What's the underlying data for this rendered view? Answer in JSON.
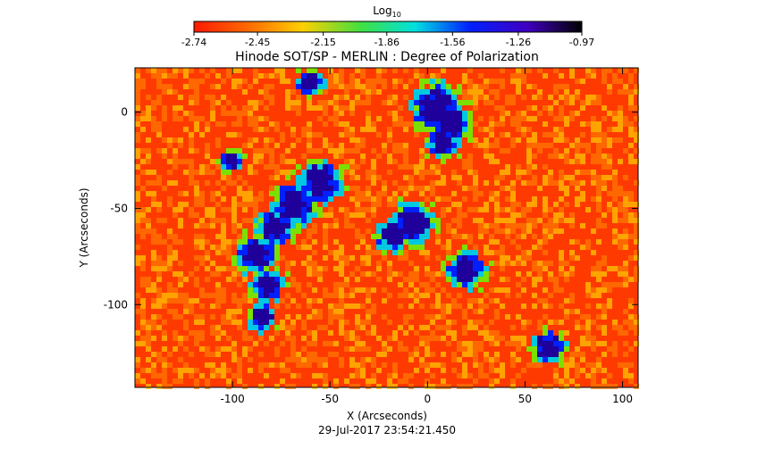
{
  "chart_data": {
    "type": "heatmap",
    "title": "Hinode SOT/SP - MERLIN : Degree of Polarization",
    "xlabel": "X (Arcseconds)",
    "ylabel": "Y (Arcseconds)",
    "timestamp": "29-Jul-2017 23:54:21.450",
    "xlim": [
      -150,
      108
    ],
    "ylim": [
      -143,
      23
    ],
    "xticks": [
      {
        "value": -100,
        "label": "-100"
      },
      {
        "value": -50,
        "label": "-50"
      },
      {
        "value": 0,
        "label": "0"
      },
      {
        "value": 50,
        "label": "50"
      },
      {
        "value": 100,
        "label": "100"
      }
    ],
    "yticks": [
      {
        "value": 0,
        "label": "0"
      },
      {
        "value": -50,
        "label": "-50"
      },
      {
        "value": -100,
        "label": "-100"
      }
    ],
    "colorbar": {
      "title_main": "Log",
      "title_sub": "10",
      "range": [
        -2.74,
        -0.97
      ],
      "colormap": "rainbow (red to black)",
      "ticks": [
        {
          "value": -2.74,
          "label": "-2.74"
        },
        {
          "value": -2.45,
          "label": "-2.45"
        },
        {
          "value": -2.15,
          "label": "-2.15"
        },
        {
          "value": -1.86,
          "label": "-1.86"
        },
        {
          "value": -1.56,
          "label": "-1.56"
        },
        {
          "value": -1.26,
          "label": "-1.26"
        },
        {
          "value": -0.97,
          "label": "-0.97"
        }
      ]
    },
    "high_polarization_regions": [
      {
        "x": 5,
        "y": 2,
        "spread": 9
      },
      {
        "x": 12,
        "y": -6,
        "spread": 7
      },
      {
        "x": 8,
        "y": -15,
        "spread": 6
      },
      {
        "x": -8,
        "y": -58,
        "spread": 8
      },
      {
        "x": -18,
        "y": -64,
        "spread": 6
      },
      {
        "x": -55,
        "y": -36,
        "spread": 8
      },
      {
        "x": -68,
        "y": -48,
        "spread": 8
      },
      {
        "x": -78,
        "y": -60,
        "spread": 7
      },
      {
        "x": -88,
        "y": -74,
        "spread": 7
      },
      {
        "x": -82,
        "y": -90,
        "spread": 6
      },
      {
        "x": -85,
        "y": -107,
        "spread": 5
      },
      {
        "x": 20,
        "y": -82,
        "spread": 7
      },
      {
        "x": 62,
        "y": -122,
        "spread": 6
      },
      {
        "x": -60,
        "y": 15,
        "spread": 5
      },
      {
        "x": -100,
        "y": -25,
        "spread": 4
      }
    ],
    "colors": {
      "colorbar_stops": [
        "#ff1a00",
        "#ff6a00",
        "#ffd000",
        "#40e040",
        "#00e0e0",
        "#0020ff",
        "#4000c0",
        "#000000"
      ],
      "field_background": "#ff3a00"
    }
  }
}
